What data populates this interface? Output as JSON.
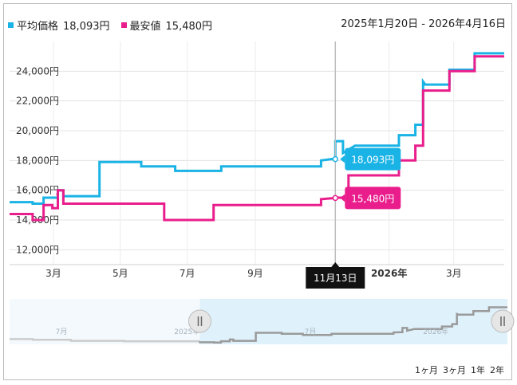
{
  "legend": {
    "avg": {
      "label": "平均価格",
      "value": "18,093円",
      "color": "#1ab3e6"
    },
    "min": {
      "label": "最安値",
      "value": "15,480円",
      "color": "#e91e8c"
    }
  },
  "date_range": "2025年1月20日 - 2026年4月16日",
  "range_buttons": [
    "1ヶ月",
    "3ヶ月",
    "1年",
    "2年"
  ],
  "tooltip": {
    "date": "11月13日",
    "avg_value": "18,093円",
    "min_value": "15,480円"
  },
  "navigator_labels": [
    "7月",
    "2025年",
    "7月",
    "2026年"
  ],
  "chart_data": {
    "type": "line",
    "title": "",
    "xlabel": "",
    "ylabel": "",
    "ylim": [
      11000,
      26000
    ],
    "y_ticks": [
      "12,000円",
      "14,000円",
      "16,000円",
      "18,000円",
      "20,000円",
      "22,000円",
      "24,000円"
    ],
    "x_ticks": [
      "3月",
      "5月",
      "7月",
      "9月",
      "11月13日",
      "2026年",
      "3月"
    ],
    "grid": true,
    "x_range": [
      "2025-01-20",
      "2026-04-16"
    ],
    "series": [
      {
        "name": "平均価格",
        "color": "#1ab3e6",
        "points": [
          [
            "2025-01-20",
            15200
          ],
          [
            "2025-02-10",
            15200
          ],
          [
            "2025-02-10",
            15100
          ],
          [
            "2025-02-20",
            15100
          ],
          [
            "2025-02-20",
            15500
          ],
          [
            "2025-03-05",
            15500
          ],
          [
            "2025-03-05",
            16000
          ],
          [
            "2025-03-10",
            16000
          ],
          [
            "2025-03-10",
            15600
          ],
          [
            "2025-04-12",
            15600
          ],
          [
            "2025-04-12",
            17900
          ],
          [
            "2025-05-20",
            17900
          ],
          [
            "2025-05-20",
            17600
          ],
          [
            "2025-06-20",
            17600
          ],
          [
            "2025-06-20",
            17300
          ],
          [
            "2025-08-01",
            17300
          ],
          [
            "2025-08-01",
            17600
          ],
          [
            "2025-10-31",
            17600
          ],
          [
            "2025-10-31",
            18000
          ],
          [
            "2025-11-10",
            18100
          ],
          [
            "2025-11-13",
            18093
          ],
          [
            "2025-11-13",
            19300
          ],
          [
            "2025-11-20",
            19300
          ],
          [
            "2025-11-20",
            18500
          ],
          [
            "2025-12-01",
            19000
          ],
          [
            "2026-01-10",
            19000
          ],
          [
            "2026-01-10",
            19700
          ],
          [
            "2026-01-25",
            19700
          ],
          [
            "2026-01-25",
            20400
          ],
          [
            "2026-02-01",
            20400
          ],
          [
            "2026-02-01",
            23300
          ],
          [
            "2026-02-03",
            23100
          ],
          [
            "2026-02-25",
            23100
          ],
          [
            "2026-02-25",
            24100
          ],
          [
            "2026-03-20",
            24100
          ],
          [
            "2026-03-20",
            25200
          ],
          [
            "2026-04-16",
            25200
          ]
        ]
      },
      {
        "name": "最安値",
        "color": "#e91e8c",
        "points": [
          [
            "2025-01-20",
            14400
          ],
          [
            "2025-02-10",
            14400
          ],
          [
            "2025-02-10",
            14000
          ],
          [
            "2025-02-20",
            14000
          ],
          [
            "2025-02-20",
            15000
          ],
          [
            "2025-02-28",
            15000
          ],
          [
            "2025-02-28",
            14800
          ],
          [
            "2025-03-05",
            14800
          ],
          [
            "2025-03-05",
            16000
          ],
          [
            "2025-03-10",
            16000
          ],
          [
            "2025-03-10",
            15100
          ],
          [
            "2025-06-10",
            15100
          ],
          [
            "2025-06-10",
            14000
          ],
          [
            "2025-07-25",
            14000
          ],
          [
            "2025-07-25",
            15000
          ],
          [
            "2025-10-31",
            15000
          ],
          [
            "2025-10-31",
            15400
          ],
          [
            "2025-11-13",
            15480
          ],
          [
            "2025-11-13",
            15500
          ],
          [
            "2025-11-25",
            15500
          ],
          [
            "2025-11-25",
            17000
          ],
          [
            "2026-01-10",
            17000
          ],
          [
            "2026-01-10",
            18000
          ],
          [
            "2026-01-25",
            18000
          ],
          [
            "2026-01-25",
            19000
          ],
          [
            "2026-02-01",
            19000
          ],
          [
            "2026-02-01",
            22700
          ],
          [
            "2026-02-25",
            22700
          ],
          [
            "2026-02-25",
            24000
          ],
          [
            "2026-03-20",
            24000
          ],
          [
            "2026-03-20",
            25000
          ],
          [
            "2026-04-16",
            25000
          ]
        ]
      }
    ],
    "navigator": {
      "x_range": [
        "2024-04-16",
        "2026-04-16"
      ],
      "selection": [
        "2025-01-20",
        "2026-04-16"
      ]
    }
  }
}
